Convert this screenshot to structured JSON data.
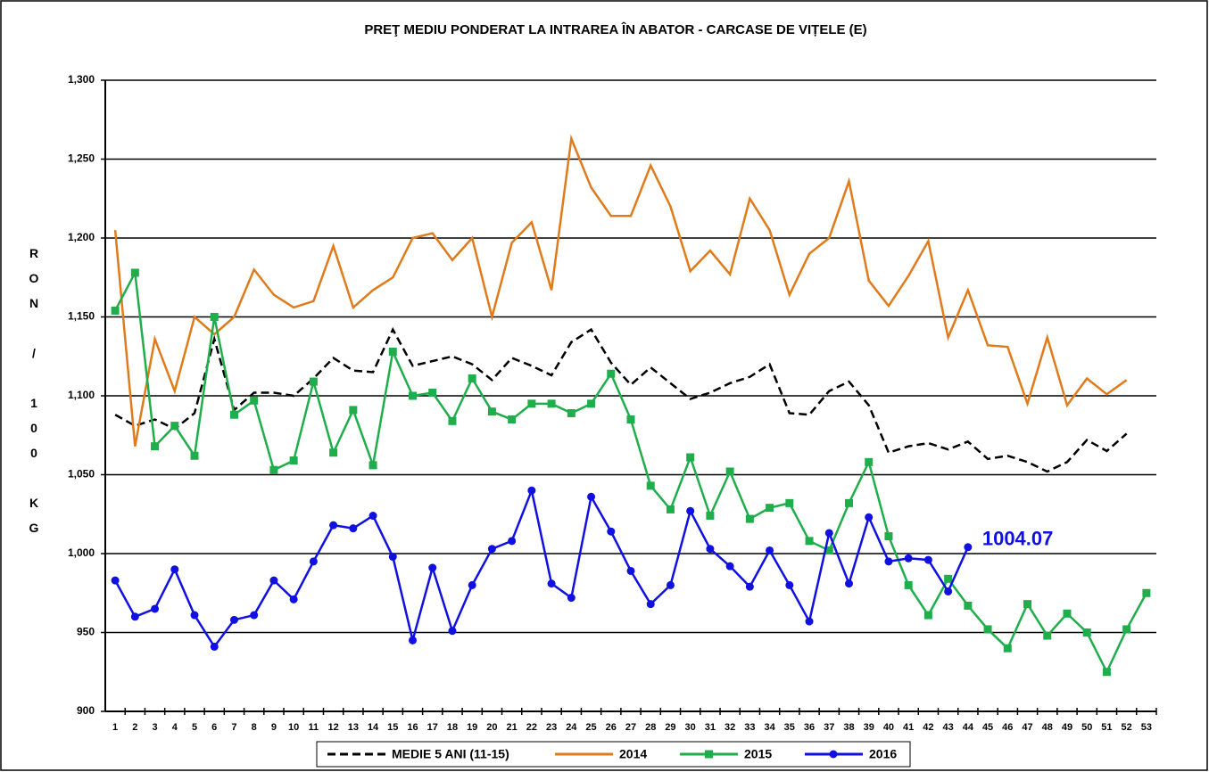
{
  "chart_data": {
    "type": "line",
    "title": "PREŢ MEDIU PONDERAT LA INTRAREA ÎN ABATOR - CARCASE DE VIȚELE (E)",
    "y_label": "RON / 100 KG",
    "categories": [
      1,
      2,
      3,
      4,
      5,
      6,
      7,
      8,
      9,
      10,
      11,
      12,
      13,
      14,
      15,
      16,
      17,
      18,
      19,
      20,
      21,
      22,
      23,
      24,
      25,
      26,
      27,
      28,
      29,
      30,
      31,
      32,
      33,
      34,
      35,
      36,
      37,
      38,
      39,
      40,
      41,
      42,
      43,
      44,
      45,
      46,
      47,
      48,
      49,
      50,
      51,
      52,
      53
    ],
    "ylim": [
      900,
      1300
    ],
    "yticks": [
      900,
      950,
      {
        "value": 1000,
        "label": "1,000"
      },
      {
        "value": 1050,
        "label": "1,050"
      },
      {
        "value": 1100,
        "label": "1,100"
      },
      {
        "value": 1150,
        "label": "1,150"
      },
      {
        "value": 1200,
        "label": "1,200"
      },
      {
        "value": 1250,
        "label": "1,250"
      },
      {
        "value": 1300,
        "label": "1,300"
      }
    ],
    "grid": true,
    "legend": "bottom",
    "series": [
      {
        "name": "MEDIE 5 ANI (11-15)",
        "color": "#000000",
        "dash": true,
        "marker": "none",
        "values": [
          1088,
          1081,
          1085,
          1079,
          1089,
          1136,
          1091,
          1102,
          1102,
          1100,
          1111,
          1124,
          1116,
          1115,
          1142,
          1119,
          1122,
          1125,
          1120,
          1110,
          1124,
          1119,
          1113,
          1134,
          1142,
          1121,
          1107,
          1118,
          1108,
          1098,
          1102,
          1108,
          1112,
          1120,
          1089,
          1088,
          1103,
          1109,
          1094,
          1064,
          1068,
          1070,
          1066,
          1071,
          1060,
          1062,
          1058,
          1052,
          1058,
          1072,
          1065,
          1076,
          null
        ]
      },
      {
        "name": "2014",
        "color": "#e07b1c",
        "dash": false,
        "marker": "none",
        "values": [
          1205,
          1068,
          1136,
          1103,
          1150,
          1139,
          1150,
          1180,
          1164,
          1156,
          1160,
          1195,
          1156,
          1167,
          1175,
          1200,
          1203,
          1186,
          1200,
          1150,
          1197,
          1210,
          1167,
          1263,
          1232,
          1214,
          1214,
          1246,
          1220,
          1179,
          1192,
          1177,
          1225,
          1205,
          1164,
          1190,
          1200,
          1236,
          1173,
          1157,
          1176,
          1198,
          1137,
          1167,
          1132,
          1131,
          1095,
          1137,
          1094,
          1111,
          1101,
          1110,
          null
        ]
      },
      {
        "name": "2015",
        "color": "#1fae4b",
        "dash": false,
        "marker": "square",
        "values": [
          1154,
          1178,
          1068,
          1081,
          1062,
          1150,
          1088,
          1097,
          1053,
          1059,
          1109,
          1064,
          1091,
          1056,
          1128,
          1100,
          1102,
          1084,
          1111,
          1090,
          1085,
          1095,
          1095,
          1089,
          1095,
          1114,
          1085,
          1043,
          1028,
          1061,
          1024,
          1052,
          1022,
          1029,
          1032,
          1008,
          1002,
          1032,
          1058,
          1011,
          980,
          961,
          984,
          967,
          952,
          940,
          968,
          948,
          962,
          950,
          925,
          952,
          975
        ]
      },
      {
        "name": "2016",
        "color": "#1010e0",
        "dash": false,
        "marker": "circle",
        "values": [
          983,
          960,
          965,
          990,
          961,
          941,
          958,
          961,
          983,
          971,
          995,
          1018,
          1016,
          1024,
          998,
          945,
          991,
          951,
          980,
          1003,
          1008,
          1040,
          981,
          972,
          1036,
          1014,
          989,
          968,
          980,
          1027,
          1003,
          992,
          979,
          1002,
          980,
          957,
          1013,
          981,
          1023,
          995,
          997,
          996,
          976,
          1004.07,
          null,
          null,
          null,
          null,
          null,
          null,
          null,
          null,
          null
        ],
        "value_labels": [
          null,
          null,
          null,
          null,
          null,
          null,
          null,
          null,
          null,
          null,
          null,
          null,
          null,
          null,
          null,
          null,
          null,
          null,
          null,
          null,
          null,
          null,
          null,
          null,
          null,
          null,
          null,
          null,
          null,
          null,
          null,
          null,
          null,
          null,
          null,
          null,
          null,
          null,
          null,
          null,
          null,
          null,
          null,
          "1004.07",
          null,
          null,
          null,
          null,
          null,
          null,
          null,
          null,
          null
        ]
      }
    ]
  }
}
